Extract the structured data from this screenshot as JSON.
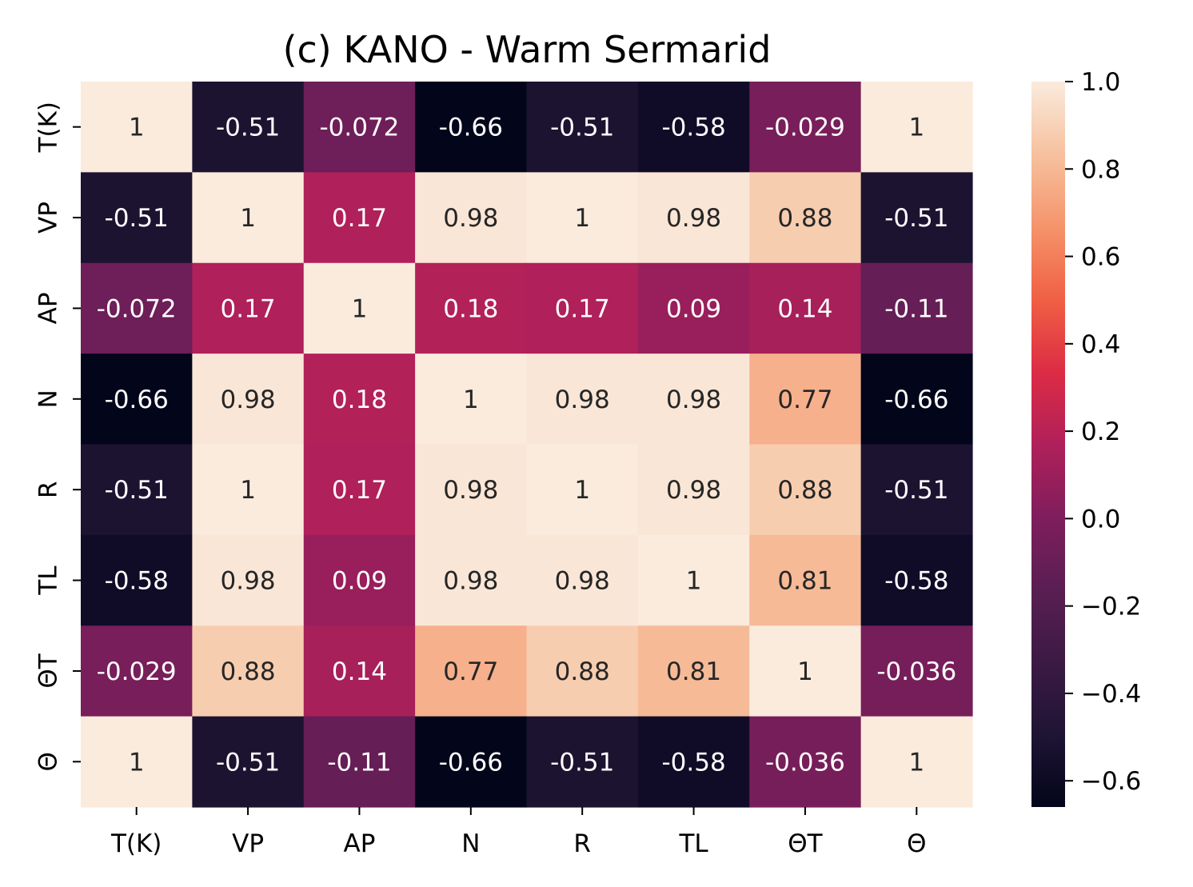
{
  "chart_data": {
    "type": "heatmap",
    "title": "(c) KANO - Warm Sermarid",
    "x_labels": [
      "T(K)",
      "VP",
      "AP",
      "N",
      "R",
      "TL",
      "ΘT",
      "Θ"
    ],
    "y_labels": [
      "T(K)",
      "VP",
      "AP",
      "N",
      "R",
      "TL",
      "ΘT",
      "Θ"
    ],
    "values": [
      [
        1,
        -0.51,
        -0.072,
        -0.66,
        -0.51,
        -0.58,
        -0.029,
        1
      ],
      [
        -0.51,
        1,
        0.17,
        0.98,
        1,
        0.98,
        0.88,
        -0.51
      ],
      [
        -0.072,
        0.17,
        1,
        0.18,
        0.17,
        0.09,
        0.14,
        -0.11
      ],
      [
        -0.66,
        0.98,
        0.18,
        1,
        0.98,
        0.98,
        0.77,
        -0.66
      ],
      [
        -0.51,
        1,
        0.17,
        0.98,
        1,
        0.98,
        0.88,
        -0.51
      ],
      [
        -0.58,
        0.98,
        0.09,
        0.98,
        0.98,
        1,
        0.81,
        -0.58
      ],
      [
        -0.029,
        0.88,
        0.14,
        0.77,
        0.88,
        0.81,
        1,
        -0.036
      ],
      [
        1,
        -0.51,
        -0.11,
        -0.66,
        -0.51,
        -0.58,
        -0.036,
        1
      ]
    ],
    "cell_labels": [
      [
        "1",
        "-0.51",
        "-0.072",
        "-0.66",
        "-0.51",
        "-0.58",
        "-0.029",
        "1"
      ],
      [
        "-0.51",
        "1",
        "0.17",
        "0.98",
        "1",
        "0.98",
        "0.88",
        "-0.51"
      ],
      [
        "-0.072",
        "0.17",
        "1",
        "0.18",
        "0.17",
        "0.09",
        "0.14",
        "-0.11"
      ],
      [
        "-0.66",
        "0.98",
        "0.18",
        "1",
        "0.98",
        "0.98",
        "0.77",
        "-0.66"
      ],
      [
        "-0.51",
        "1",
        "0.17",
        "0.98",
        "1",
        "0.98",
        "0.88",
        "-0.51"
      ],
      [
        "-0.58",
        "0.98",
        "0.09",
        "0.98",
        "0.98",
        "1",
        "0.81",
        "-0.58"
      ],
      [
        "-0.029",
        "0.88",
        "0.14",
        "0.77",
        "0.88",
        "0.81",
        "1",
        "-0.036"
      ],
      [
        "1",
        "-0.51",
        "-0.11",
        "-0.66",
        "-0.51",
        "-0.58",
        "-0.036",
        "1"
      ]
    ],
    "colorbar": {
      "range": [
        -0.66,
        1.0
      ],
      "ticks": [
        1.0,
        0.8,
        0.6,
        0.4,
        0.2,
        0.0,
        -0.2,
        -0.4,
        -0.6
      ],
      "tick_labels": [
        "1.0",
        "0.8",
        "0.6",
        "0.4",
        "0.2",
        "0.0",
        "−0.2",
        "−0.4",
        "−0.6"
      ],
      "colormap": "rocket",
      "colormap_stops": [
        [
          0.0,
          "#03051a"
        ],
        [
          0.1,
          "#1f1434"
        ],
        [
          0.2,
          "#3c1a44"
        ],
        [
          0.3,
          "#5a1e53"
        ],
        [
          0.4,
          "#7f1e5c"
        ],
        [
          0.5,
          "#b0205a"
        ],
        [
          0.6,
          "#dd2c45"
        ],
        [
          0.7,
          "#f06043"
        ],
        [
          0.8,
          "#f5946b"
        ],
        [
          0.9,
          "#f6c19f"
        ],
        [
          1.0,
          "#faebdd"
        ]
      ]
    },
    "annotation_colors": {
      "light": "#ffffff",
      "dark": "#262626"
    },
    "grid": false
  }
}
